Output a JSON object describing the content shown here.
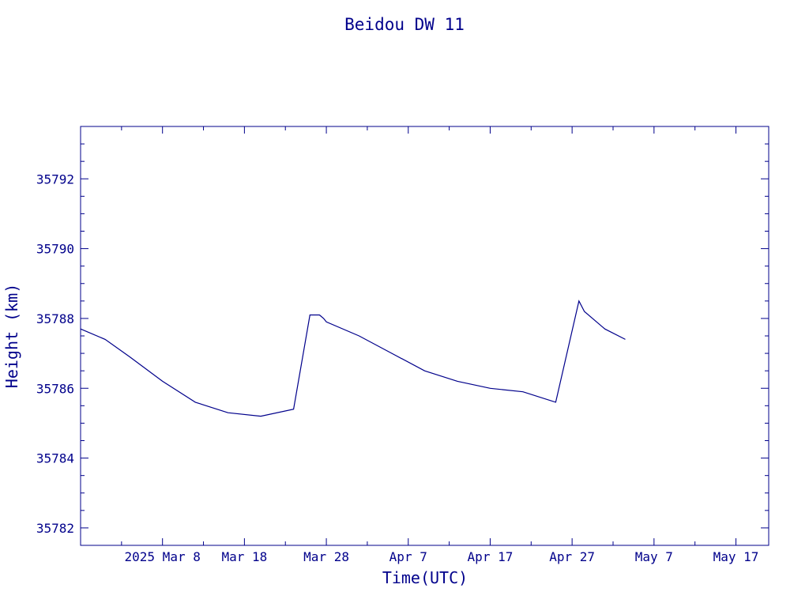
{
  "chart_data": {
    "type": "line",
    "title": "Beidou DW 11",
    "xlabel": "Time(UTC)",
    "ylabel": "Height (km)",
    "xlim": [
      "2025-02-26",
      "2025-05-21"
    ],
    "ylim": [
      35781.5,
      35793.5
    ],
    "x_ticks": [
      {
        "date": "2025-02-26",
        "label": ""
      },
      {
        "date": "2025-03-08",
        "label": "2025 Mar  8"
      },
      {
        "date": "2025-03-18",
        "label": "Mar 18"
      },
      {
        "date": "2025-03-28",
        "label": "Mar 28"
      },
      {
        "date": "2025-04-07",
        "label": "Apr  7"
      },
      {
        "date": "2025-04-17",
        "label": "Apr 17"
      },
      {
        "date": "2025-04-27",
        "label": "Apr 27"
      },
      {
        "date": "2025-05-07",
        "label": "May  7"
      },
      {
        "date": "2025-05-17",
        "label": "May 17"
      }
    ],
    "y_ticks": [
      35782,
      35784,
      35786,
      35788,
      35790,
      35792
    ],
    "grid": false,
    "legend": "none",
    "color": "#00008b",
    "series": [
      {
        "x": [
          "2025-02-26",
          "2025-03-01",
          "2025-03-04",
          "2025-03-08",
          "2025-03-12",
          "2025-03-16",
          "2025-03-20",
          "2025-03-24",
          "2025-03-26",
          "2025-03-27T04:00",
          "2025-03-27T16:00",
          "2025-03-28",
          "2025-04-01",
          "2025-04-05",
          "2025-04-09",
          "2025-04-13",
          "2025-04-17",
          "2025-04-21",
          "2025-04-25",
          "2025-04-27T20:00",
          "2025-04-28T12:00",
          "2025-05-01",
          "2025-05-03T12:00"
        ],
        "y": [
          35787.7,
          35787.4,
          35786.9,
          35786.2,
          35785.6,
          35785.3,
          35785.2,
          35785.4,
          35788.1,
          35788.1,
          35788.0,
          35787.9,
          35787.5,
          35787.0,
          35786.5,
          35786.2,
          35786.0,
          35785.9,
          35785.6,
          35788.5,
          35788.2,
          35787.7,
          35787.4
        ]
      }
    ]
  }
}
